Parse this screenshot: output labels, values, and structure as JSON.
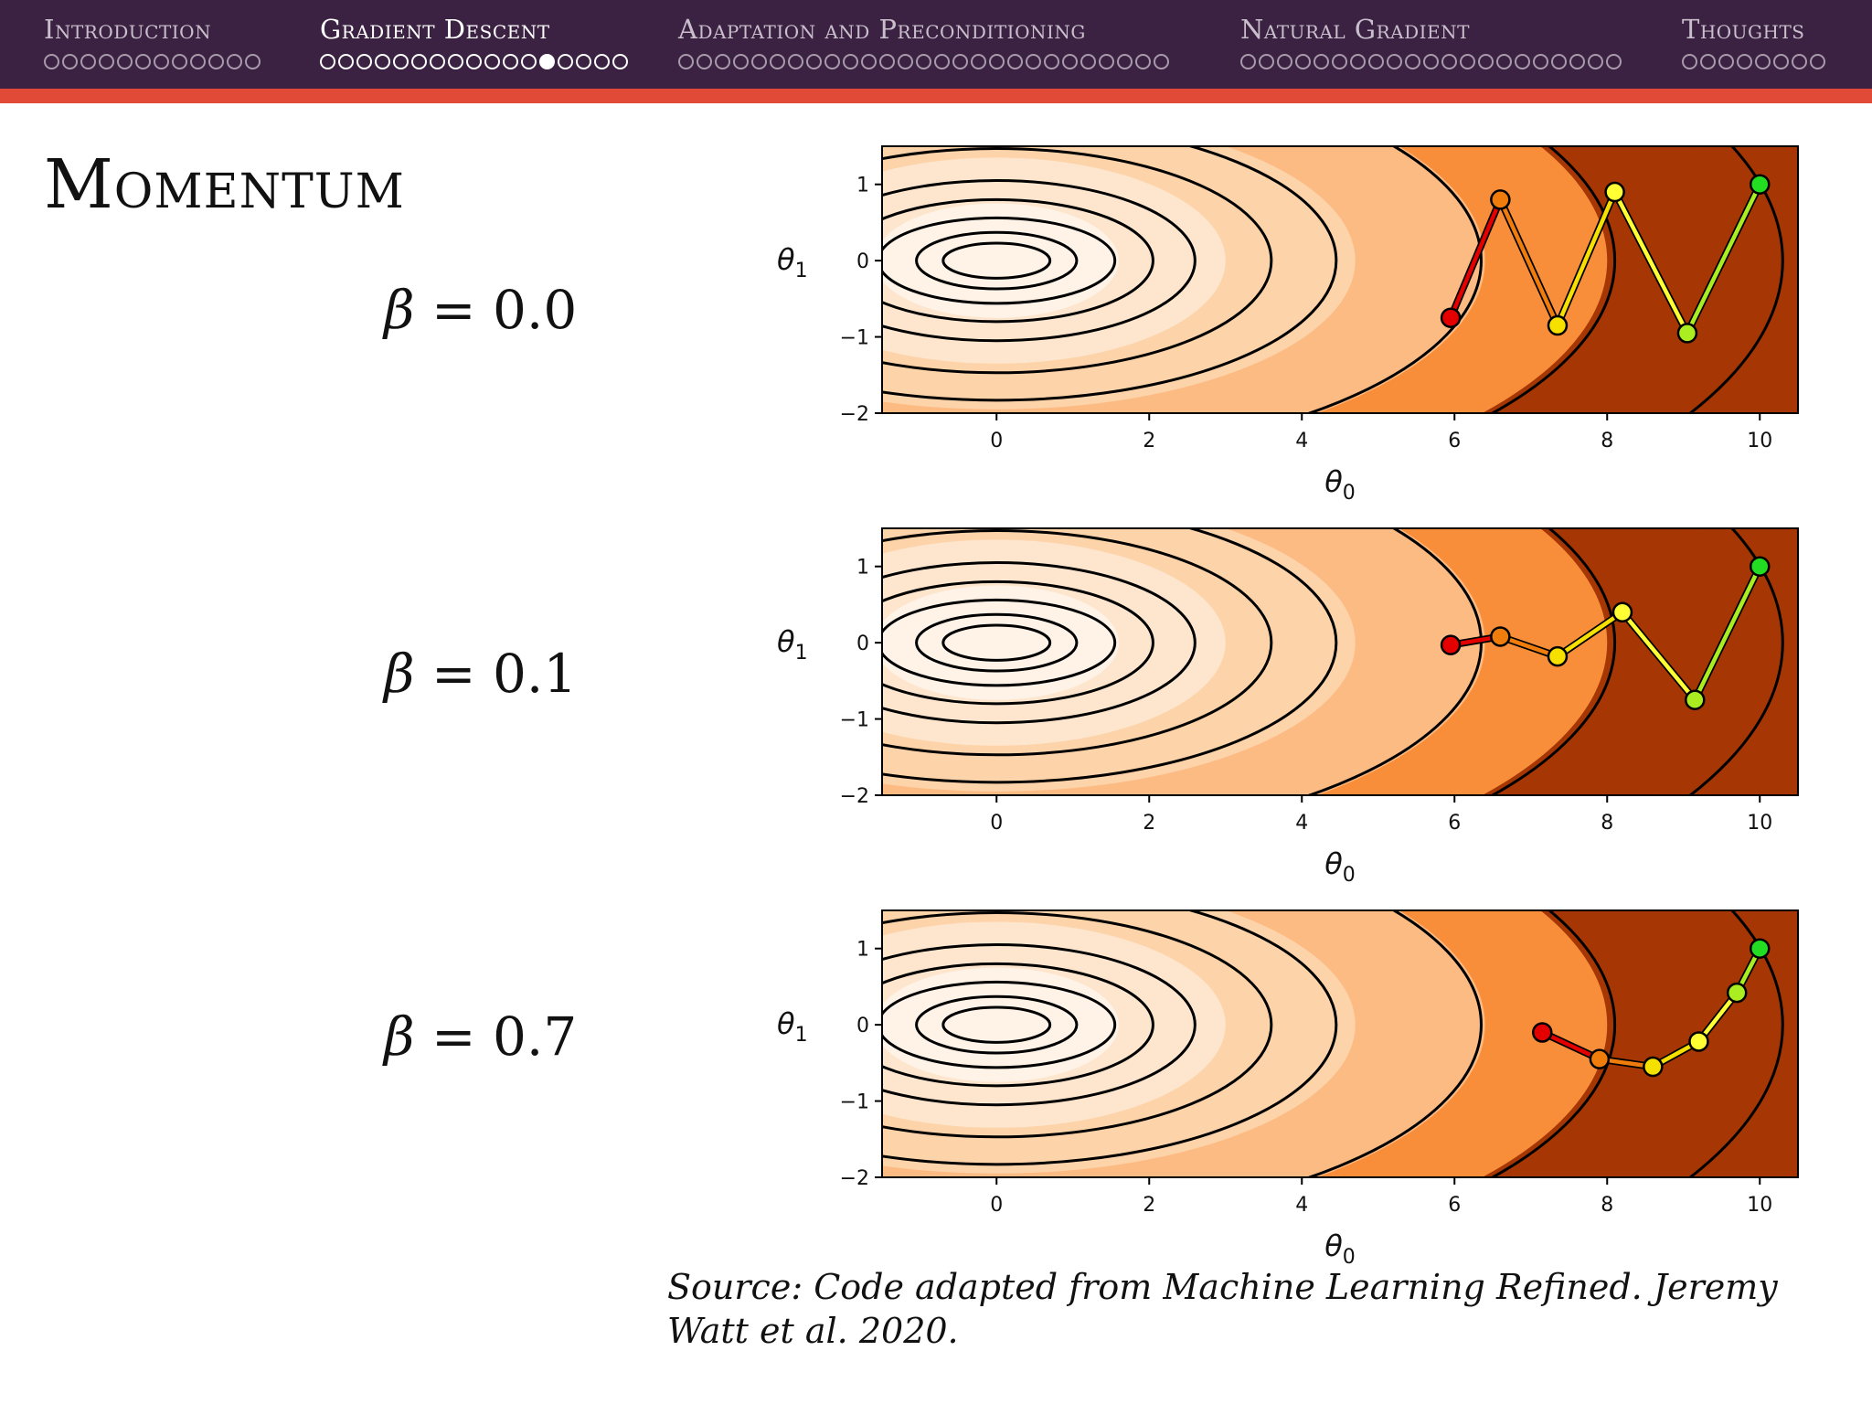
{
  "nav": {
    "sections": [
      {
        "label": "Introduction",
        "dots": 12,
        "filled": -1,
        "active": false
      },
      {
        "label": "Gradient Descent",
        "dots": 17,
        "filled": 12,
        "active": true
      },
      {
        "label": "Adaptation and Preconditioning",
        "dots": 27,
        "filled": -1,
        "active": false
      },
      {
        "label": "Natural Gradient",
        "dots": 21,
        "filled": -1,
        "active": false
      },
      {
        "label": "Thoughts",
        "dots": 8,
        "filled": -1,
        "active": false
      }
    ]
  },
  "slide": {
    "title": "Momentum",
    "source": "Source: Code adapted from Machine Learning Refined. Jeremy Watt et al. 2020."
  },
  "beta_labels": [
    {
      "symbol": "β",
      "text": " = 0.0"
    },
    {
      "symbol": "β",
      "text": " = 0.1"
    },
    {
      "symbol": "β",
      "text": " = 0.7"
    }
  ],
  "colors": {
    "nav_bg": "#3b2242",
    "accent_line": "#e04a37",
    "contour_fills": [
      "#fff3e8",
      "#fee6ce",
      "#fdd3aa",
      "#fdbb84",
      "#f98e3a",
      "#a63603"
    ],
    "trajectory": [
      "#e50000",
      "#f07d0b",
      "#f5e000",
      "#ffff33",
      "#aaee22",
      "#22dd22"
    ]
  },
  "chart_data": [
    {
      "type": "line",
      "title": "",
      "xlabel": "θ0",
      "ylabel": "θ1",
      "xlim": [
        -1.5,
        10.5
      ],
      "ylim": [
        -2,
        1.5
      ],
      "xticks": [
        "0",
        "2",
        "4",
        "6",
        "8",
        "10"
      ],
      "yticks": [
        "−2",
        "−1",
        "0",
        "1"
      ],
      "background": "contour of elliptical quadratic centered at (0, 0)",
      "series": [
        {
          "x": [
            10,
            9.05,
            8.1,
            7.35,
            6.6,
            5.95
          ],
          "y": [
            1.0,
            -0.95,
            0.9,
            -0.85,
            0.8,
            -0.75
          ]
        }
      ]
    },
    {
      "type": "line",
      "title": "",
      "xlabel": "θ0",
      "ylabel": "θ1",
      "xlim": [
        -1.5,
        10.5
      ],
      "ylim": [
        -2,
        1.5
      ],
      "xticks": [
        "0",
        "2",
        "4",
        "6",
        "8",
        "10"
      ],
      "yticks": [
        "−2",
        "−1",
        "0",
        "1"
      ],
      "background": "contour of elliptical quadratic centered at (0, 0)",
      "series": [
        {
          "x": [
            10,
            9.15,
            8.2,
            7.35,
            6.6,
            5.95
          ],
          "y": [
            1.0,
            -0.75,
            0.4,
            -0.18,
            0.08,
            -0.03
          ]
        }
      ]
    },
    {
      "type": "line",
      "title": "",
      "xlabel": "θ0",
      "ylabel": "θ1",
      "xlim": [
        -1.5,
        10.5
      ],
      "ylim": [
        -2,
        1.5
      ],
      "xticks": [
        "0",
        "2",
        "4",
        "6",
        "8",
        "10"
      ],
      "yticks": [
        "−2",
        "−1",
        "0",
        "1"
      ],
      "background": "contour of elliptical quadratic centered at (0, 0)",
      "series": [
        {
          "x": [
            10,
            9.7,
            9.2,
            8.6,
            7.9,
            7.15
          ],
          "y": [
            1.0,
            0.42,
            -0.22,
            -0.55,
            -0.45,
            -0.1
          ]
        }
      ]
    }
  ]
}
